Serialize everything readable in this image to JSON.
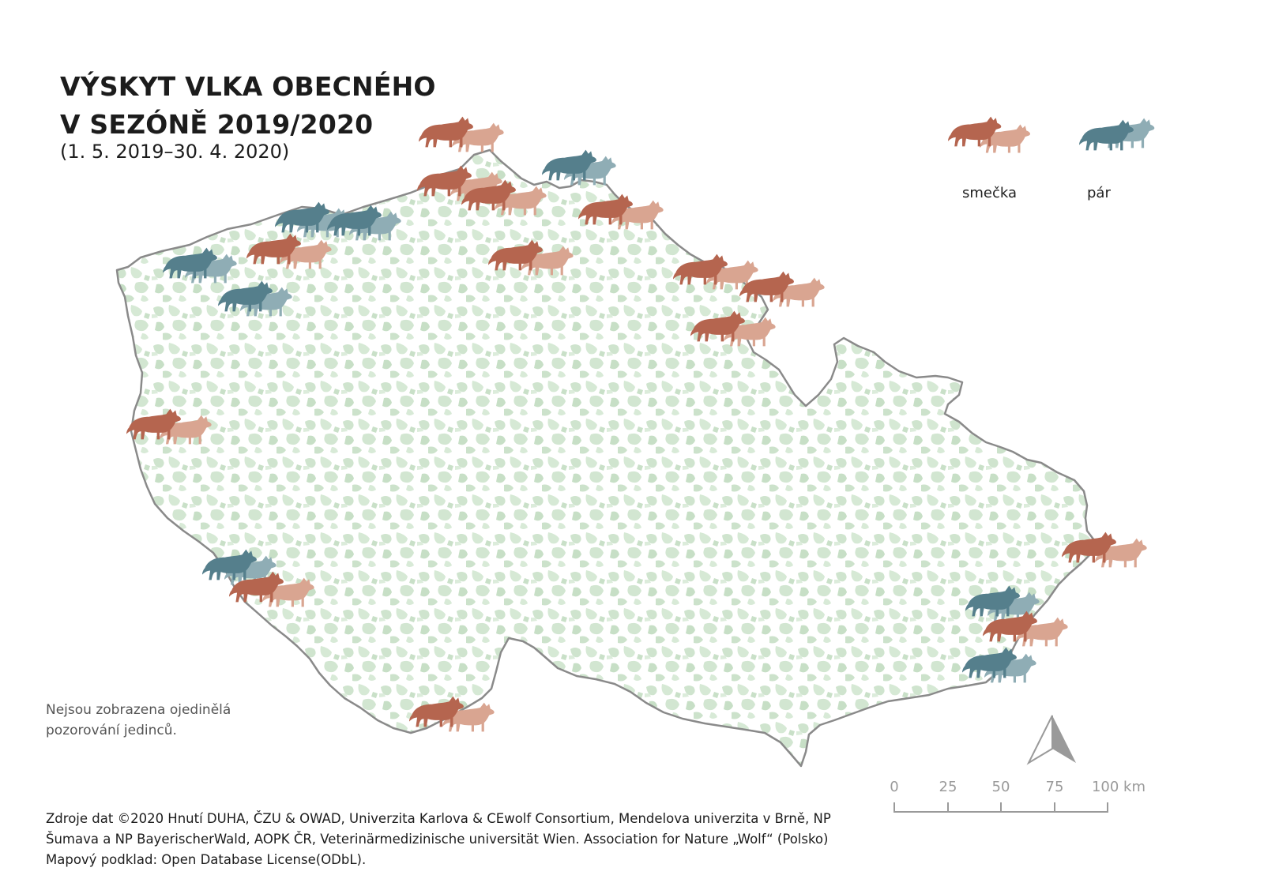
{
  "title": {
    "line1": "VÝSKYT VLKA OBECNÉHO",
    "line2": "V SEZÓNĚ 2019/2020",
    "dates": "(1. 5. 2019–30. 4. 2020)"
  },
  "legend": {
    "pack_label": "smečka",
    "pair_label": "pár"
  },
  "colors": {
    "pack_front": "#b5654f",
    "pack_back": "#d9a591",
    "pair_front": "#557f8c",
    "pair_back": "#8fadb5",
    "forest": "#c9e0c8",
    "border": "#8a8a8a"
  },
  "note": {
    "line1": "Nejsou zobrazena ojedinělá",
    "line2": "pozorování jedinců."
  },
  "sources": {
    "line1": "Zdroje dat ©2020 Hnutí DUHA, ČZU & OWAD, Univerzita Karlova & CEwolf Consortium, Mendelova univerzita v Brně, NP",
    "line2": "Šumava a NP BayerischerWald, AOPK ČR, Veterinärmedizinische universität Wien. Association for Nature „Wolf“ (Polsko)",
    "line3": "Mapový podklad: Open Database License(ODbL)."
  },
  "scale": {
    "ticks": [
      "0",
      "25",
      "50",
      "75",
      "100 km"
    ]
  },
  "north_arrow": "north-arrow-icon",
  "markers": [
    {
      "type": "pack",
      "region": "north-top"
    },
    {
      "type": "pack",
      "region": "north-1"
    },
    {
      "type": "pack",
      "region": "north-2"
    },
    {
      "type": "pair",
      "region": "north-pair"
    },
    {
      "type": "pack",
      "region": "north-east-1"
    },
    {
      "type": "pack",
      "region": "north-central"
    },
    {
      "type": "pair",
      "region": "north-west-1"
    },
    {
      "type": "pair",
      "region": "north-west-2"
    },
    {
      "type": "pack",
      "region": "north-west-3"
    },
    {
      "type": "pair",
      "region": "far-west-1"
    },
    {
      "type": "pair",
      "region": "far-west-2"
    },
    {
      "type": "pack",
      "region": "north-east-2"
    },
    {
      "type": "pack",
      "region": "north-east-3"
    },
    {
      "type": "pack",
      "region": "north-east-4"
    },
    {
      "type": "pack",
      "region": "west"
    },
    {
      "type": "pair",
      "region": "south-west-1"
    },
    {
      "type": "pack",
      "region": "south-west-2"
    },
    {
      "type": "pack",
      "region": "south"
    },
    {
      "type": "pack",
      "region": "east-1"
    },
    {
      "type": "pair",
      "region": "east-2"
    },
    {
      "type": "pack",
      "region": "east-3"
    },
    {
      "type": "pair",
      "region": "east-4"
    }
  ]
}
